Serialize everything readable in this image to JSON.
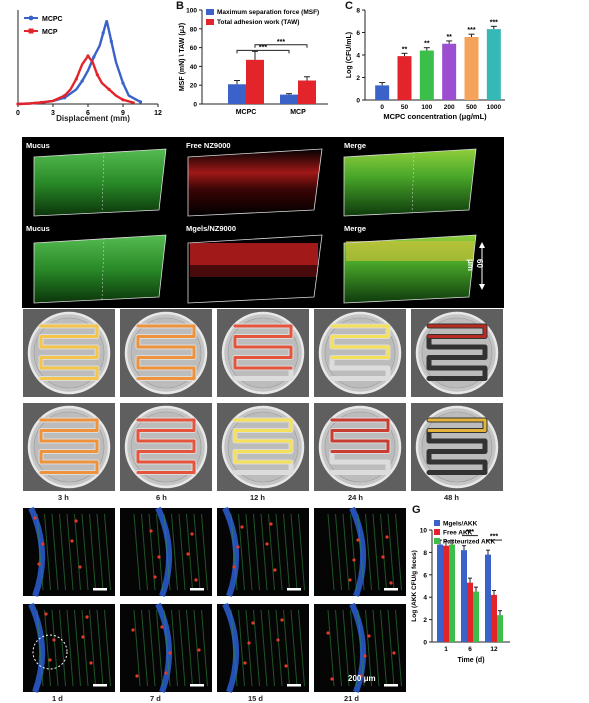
{
  "panelA": {
    "legend": [
      "MCPC",
      "MCP"
    ],
    "xlabel": "Displacement (mm)",
    "xticks": [
      "0",
      "3",
      "6",
      "9",
      "12"
    ],
    "colors": {
      "MCPC": "#3a62c9",
      "MCP": "#e3242b"
    }
  },
  "panelB": {
    "letter": "B",
    "legend": [
      "Maximum separation force (MSF)",
      "Total adhesion  work (TAW)"
    ],
    "ylabel": "MSF (mN) \\ TAW (μJ)",
    "yticks": [
      "0",
      "20",
      "40",
      "60",
      "80",
      "100"
    ],
    "categories": [
      "MCPC",
      "MCP"
    ],
    "sig": [
      "***",
      "***"
    ]
  },
  "panelC": {
    "letter": "C",
    "ylabel": "Log (CFU/mL)",
    "xlabel": "MCPC concentration (μg/mL)",
    "yticks": [
      "0",
      "2",
      "4",
      "6",
      "8"
    ],
    "categories": [
      "0",
      "50",
      "100",
      "200",
      "500",
      "1000"
    ],
    "sig": [
      "",
      "**",
      "**",
      "**",
      "***",
      "***"
    ]
  },
  "row1": {
    "labels": [
      "Mucus",
      "Free NZ9000",
      "Merge"
    ]
  },
  "row2": {
    "labels": [
      "Mucus",
      "Mgels/NZ9000",
      "Merge"
    ],
    "scale": "60 μm"
  },
  "imaging": {
    "times": [
      "3 h",
      "6 h",
      "12 h",
      "24 h",
      "48 h"
    ]
  },
  "histo": {
    "times": [
      "1 d",
      "7 d",
      "15 d",
      "21 d"
    ],
    "scale": "200 μm"
  },
  "panelG": {
    "letter": "G",
    "legend": [
      "Mgels/AKK",
      "Free AKK",
      "Pasteurized AKK"
    ],
    "ylabel": "Log (AKK CFU/g feces)",
    "xlabel": "Time (d)",
    "yticks": [
      "0",
      "2",
      "4",
      "6",
      "8",
      "10"
    ],
    "xticks": [
      "1",
      "6",
      "12"
    ],
    "sig": [
      "***",
      "***"
    ]
  },
  "chart_data": [
    {
      "type": "line",
      "xlabel": "Displacement (mm)",
      "xlim": [
        0,
        12
      ],
      "series": [
        {
          "name": "MCPC",
          "x": [
            0,
            1,
            2,
            3,
            4,
            5,
            5.5,
            6,
            6.5,
            7,
            7.3,
            7.6,
            8,
            8.4,
            9,
            9.5,
            10.5
          ],
          "y": [
            0,
            0.5,
            1.5,
            3,
            6,
            14,
            22,
            32,
            45,
            56,
            68,
            80,
            60,
            40,
            20,
            8,
            2
          ]
        },
        {
          "name": "MCP",
          "x": [
            0,
            1,
            2,
            3,
            4,
            4.5,
            5,
            5.5,
            6,
            6.4,
            6.8,
            7.2,
            7.8,
            8.4,
            9,
            10
          ],
          "y": [
            0,
            0.5,
            1.5,
            3,
            8,
            14,
            24,
            38,
            46,
            40,
            28,
            20,
            14,
            8,
            4,
            1
          ]
        }
      ]
    },
    {
      "type": "bar",
      "categories": [
        "MCPC",
        "MCP"
      ],
      "ylabel": "MSF (mN) \\ TAW (μJ)",
      "ylim": [
        0,
        100
      ],
      "series": [
        {
          "name": "Maximum separation force (MSF)",
          "values": [
            21,
            10
          ],
          "error": [
            4,
            1
          ]
        },
        {
          "name": "Total adhesion  work (TAW)",
          "values": [
            47,
            25
          ],
          "error": [
            9,
            4
          ]
        }
      ]
    },
    {
      "type": "bar",
      "categories": [
        "0",
        "50",
        "100",
        "200",
        "500",
        "1000"
      ],
      "xlabel": "MCPC concentration (μg/mL)",
      "ylabel": "Log (CFU/mL)",
      "ylim": [
        0,
        8
      ],
      "values": [
        1.3,
        3.9,
        4.4,
        5.0,
        5.6,
        6.3
      ],
      "colors": [
        "#3a62c9",
        "#e3242b",
        "#3cbf4a",
        "#9b4fd0",
        "#f5a35a",
        "#35b8b6"
      ]
    },
    {
      "type": "bar",
      "categories": [
        "1",
        "6",
        "12"
      ],
      "xlabel": "Time (d)",
      "ylabel": "Log (AKK CFU/g feces)",
      "ylim": [
        0,
        10
      ],
      "series": [
        {
          "name": "Mgels/AKK",
          "values": [
            8.7,
            8.2,
            7.8
          ]
        },
        {
          "name": "Free AKK",
          "values": [
            8.6,
            5.3,
            4.2
          ]
        },
        {
          "name": "Pasteurized AKK",
          "values": [
            8.7,
            4.5,
            2.4
          ]
        }
      ]
    }
  ]
}
